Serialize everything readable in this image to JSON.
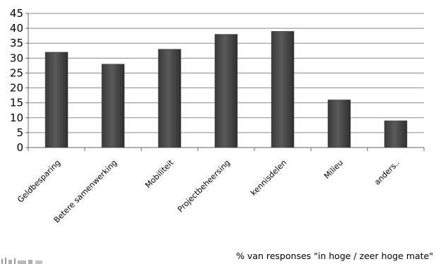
{
  "chart_data": {
    "type": "bar",
    "categories": [
      "Geldbesparing",
      "Betere samenwerking",
      "Mobiliteit",
      "Projectbeheersing",
      "kennisdelen",
      "Milieu",
      "anders.."
    ],
    "values": [
      32,
      28,
      33,
      38,
      39,
      16,
      9
    ],
    "ylim": [
      0,
      45
    ],
    "yticks": [
      0,
      5,
      10,
      15,
      20,
      25,
      30,
      35,
      40,
      45
    ],
    "grid": true,
    "legend": "none",
    "bar_color": "#4d4d4d",
    "annotation": "% van responses \"in hoge / zeer hoge mate\""
  }
}
